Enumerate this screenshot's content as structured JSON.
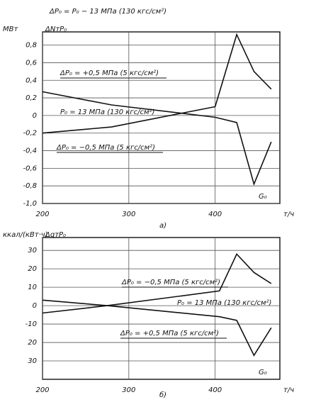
{
  "chart_data": [
    {
      "type": "line",
      "title": "ΔP₀ = P₀ − 13 МПа (130 кгс/см²)",
      "y_unit": "МВт",
      "y_label": "ΔNтP₀",
      "x_label": "G₀",
      "x_unit": "т/ч",
      "caption": "а)",
      "x": [
        200,
        280,
        400,
        425,
        445,
        465
      ],
      "series": [
        {
          "name": "ΔP₀ = +0,5 МПа (5 кгс/см²)",
          "color": "#111",
          "values": [
            0.27,
            0.12,
            -0.02,
            -0.08,
            -0.78,
            -0.3
          ]
        },
        {
          "name": "ΔP₀ = −0,5 МПа (5 кгс/см²)",
          "color": "#111",
          "values": [
            -0.2,
            -0.13,
            0.1,
            0.92,
            0.5,
            0.3
          ]
        }
      ],
      "annotations": [
        "P₀ = 13 МПа (130 кгс/см²)"
      ],
      "xlim": [
        200,
        475
      ],
      "xticks": [
        200,
        300,
        400
      ],
      "ylim": [
        -1.0,
        0.95
      ],
      "yticks": [
        {
          "value": 0.8,
          "label": "0,8"
        },
        {
          "value": 0.6,
          "label": "0,6"
        },
        {
          "value": 0.4,
          "label": "0,4"
        },
        {
          "value": 0.2,
          "label": "0,2"
        },
        0,
        {
          "value": -0.2,
          "label": "-0,2"
        },
        {
          "value": -0.4,
          "label": "-0,4"
        },
        {
          "value": -0.6,
          "label": "-0,6"
        },
        {
          "value": -0.8,
          "label": "-0,8"
        },
        {
          "value": -1.0,
          "label": "-1,0"
        }
      ],
      "grid": true
    },
    {
      "type": "line",
      "y_unit": "ккал/(кВт·ч)",
      "y_label": "ΔqтP₀",
      "x_label": "G₀",
      "x_unit": "т/ч",
      "caption": "б)",
      "x": [
        200,
        275,
        405,
        425,
        445,
        465
      ],
      "series": [
        {
          "name": "ΔP₀ = −0,5 МПа (5 кгс/см²)",
          "color": "#111",
          "values": [
            -4,
            0,
            8,
            28,
            18,
            12
          ]
        },
        {
          "name": "ΔP₀ = +0,5 МПа (5 кгс/см²)",
          "color": "#111",
          "values": [
            3,
            0,
            -6,
            -8,
            -27,
            -12
          ]
        }
      ],
      "annotations": [
        "P₀ = 13 МПа (130 кгс/см²)"
      ],
      "xlim": [
        200,
        475
      ],
      "xticks": [
        200,
        300,
        400
      ],
      "ylim": [
        -40,
        37
      ],
      "yticks": [
        30,
        20,
        10,
        0,
        -10,
        {
          "value": -20,
          "label": "20"
        },
        {
          "value": -30,
          "label": "30"
        }
      ],
      "grid": true
    }
  ]
}
